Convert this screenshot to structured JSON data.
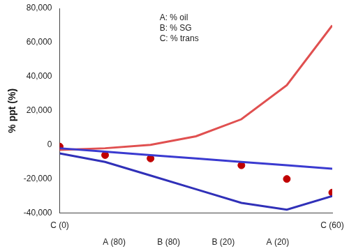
{
  "chart_data": {
    "type": "surface",
    "y_label": "% ppt (%)",
    "annotations": [
      "A: % oil",
      "B: % SG",
      "C: % trans",
      "A (80)",
      "B (80)",
      "B (20)",
      "A (20)"
    ],
    "x": [
      0,
      10,
      20,
      30,
      40,
      50,
      60
    ],
    "series": [
      {
        "type": "line",
        "color": "#3a3ad0",
        "values": [
          -2000,
          -4000,
          -6000,
          -8000,
          -10000,
          -12000,
          -14000
        ]
      },
      {
        "type": "line",
        "color": "#3030b8",
        "values": [
          -5000,
          -10000,
          -18000,
          -26000,
          -34000,
          -38000,
          -30000
        ]
      },
      {
        "type": "line",
        "color": "#e05050",
        "values": [
          -3000,
          -2000,
          0,
          5000,
          15000,
          35000,
          70000
        ]
      },
      {
        "type": "scatter",
        "marker": "circle",
        "color": "#c00000",
        "values": [
          -1000,
          -6000,
          -8000,
          null,
          -12000,
          -20000,
          -28000
        ]
      }
    ],
    "xlim": [
      0,
      60
    ],
    "xticks": [
      {
        "value": 0,
        "label": "C (0)"
      },
      {
        "value": 60,
        "label": "C (60)"
      }
    ],
    "ylim": [
      -40000,
      80000
    ],
    "yticks": [
      {
        "value": -40000,
        "label": "-40,000"
      },
      {
        "value": -20000,
        "label": "-20,000"
      },
      0,
      {
        "value": 20000,
        "label": "20,000"
      },
      {
        "value": 40000,
        "label": "40,000"
      },
      {
        "value": 60000,
        "label": "60,000"
      },
      {
        "value": 80000,
        "label": "80,000"
      }
    ],
    "grid": false
  }
}
